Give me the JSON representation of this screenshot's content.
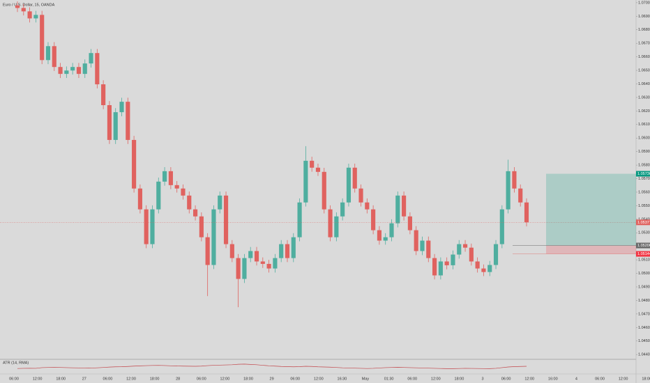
{
  "chart_data": {
    "type": "candlestick",
    "title": "Euro / U.S. Dollar, 15, OANDA",
    "up_color": "#4fae9f",
    "down_color": "#e0625f",
    "candles": [
      [
        1.0698,
        1.0701,
        1.06931,
        1.06961
      ],
      [
        1.06961,
        1.06991,
        1.06906,
        1.06936
      ],
      [
        1.06936,
        1.06966,
        1.06854,
        1.06884
      ],
      [
        1.06884,
        1.0694,
        1.06854,
        1.0691
      ],
      [
        1.0691,
        1.0694,
        1.06546,
        1.06576
      ],
      [
        1.06576,
        1.06709,
        1.06546,
        1.06679
      ],
      [
        1.06679,
        1.06709,
        1.06495,
        1.06525
      ],
      [
        1.06525,
        1.06555,
        1.06444,
        1.06474
      ],
      [
        1.06474,
        1.06529,
        1.06444,
        1.06499
      ],
      [
        1.06499,
        1.06555,
        1.06469,
        1.06525
      ],
      [
        1.06525,
        1.06555,
        1.06444,
        1.06474
      ],
      [
        1.06474,
        1.06581,
        1.06444,
        1.06551
      ],
      [
        1.06551,
        1.06658,
        1.06521,
        1.06628
      ],
      [
        1.06628,
        1.06658,
        1.06367,
        1.06397
      ],
      [
        1.06397,
        1.06427,
        1.06213,
        1.06243
      ],
      [
        1.06243,
        1.06273,
        1.05956,
        1.05986
      ],
      [
        1.05986,
        1.06221,
        1.05956,
        1.06191
      ],
      [
        1.06191,
        1.06298,
        1.06161,
        1.06268
      ],
      [
        1.06268,
        1.06298,
        1.05956,
        1.05986
      ],
      [
        1.05986,
        1.06016,
        1.05597,
        1.05627
      ],
      [
        1.05627,
        1.05657,
        1.05443,
        1.05473
      ],
      [
        1.05473,
        1.05503,
        1.05186,
        1.05216
      ],
      [
        1.05216,
        1.05503,
        1.05186,
        1.05473
      ],
      [
        1.05473,
        1.05708,
        1.05443,
        1.05678
      ],
      [
        1.05678,
        1.05785,
        1.05648,
        1.05755
      ],
      [
        1.05755,
        1.05785,
        1.05622,
        1.05652
      ],
      [
        1.05652,
        1.05682,
        1.05597,
        1.05627
      ],
      [
        1.05627,
        1.05657,
        1.05545,
        1.05575
      ],
      [
        1.05575,
        1.05605,
        1.05443,
        1.05473
      ],
      [
        1.05473,
        1.05503,
        1.05391,
        1.05421
      ],
      [
        1.05421,
        1.05451,
        1.05237,
        1.05267
      ],
      [
        1.05267,
        1.05297,
        1.04832,
        1.05062
      ],
      [
        1.05062,
        1.05503,
        1.05032,
        1.05473
      ],
      [
        1.05473,
        1.05605,
        1.05443,
        1.05575
      ],
      [
        1.05575,
        1.05605,
        1.05186,
        1.05216
      ],
      [
        1.05216,
        1.05246,
        1.05083,
        1.05113
      ],
      [
        1.05113,
        1.05143,
        1.0475,
        1.04959
      ],
      [
        1.04959,
        1.05143,
        1.04929,
        1.05113
      ],
      [
        1.05113,
        1.05195,
        1.05083,
        1.05165
      ],
      [
        1.05165,
        1.05195,
        1.05058,
        1.05088
      ],
      [
        1.05088,
        1.05118,
        1.0504,
        1.0507
      ],
      [
        1.0507,
        1.051,
        1.05006,
        1.05036
      ],
      [
        1.05036,
        1.05143,
        1.05006,
        1.05113
      ],
      [
        1.05113,
        1.05246,
        1.05083,
        1.05216
      ],
      [
        1.05216,
        1.05246,
        1.05083,
        1.05113
      ],
      [
        1.05113,
        1.05297,
        1.05083,
        1.05267
      ],
      [
        1.05267,
        1.05554,
        1.05237,
        1.05524
      ],
      [
        1.05524,
        1.0594,
        1.05494,
        1.05832
      ],
      [
        1.05832,
        1.05862,
        1.05751,
        1.05781
      ],
      [
        1.05781,
        1.05811,
        1.0572,
        1.0575
      ],
      [
        1.0575,
        1.0578,
        1.05443,
        1.05473
      ],
      [
        1.05473,
        1.05503,
        1.05237,
        1.05267
      ],
      [
        1.05267,
        1.05451,
        1.05237,
        1.05421
      ],
      [
        1.05421,
        1.05554,
        1.05391,
        1.05524
      ],
      [
        1.05524,
        1.05811,
        1.05494,
        1.05781
      ],
      [
        1.05781,
        1.05811,
        1.05597,
        1.05627
      ],
      [
        1.05627,
        1.05657,
        1.05494,
        1.05524
      ],
      [
        1.05524,
        1.05554,
        1.05443,
        1.05473
      ],
      [
        1.05473,
        1.05503,
        1.05289,
        1.05319
      ],
      [
        1.05319,
        1.05349,
        1.05212,
        1.05242
      ],
      [
        1.05242,
        1.05297,
        1.05212,
        1.05267
      ],
      [
        1.05267,
        1.054,
        1.05237,
        1.0537
      ],
      [
        1.0537,
        1.05605,
        1.0534,
        1.05575
      ],
      [
        1.05575,
        1.05605,
        1.05391,
        1.05421
      ],
      [
        1.05421,
        1.05451,
        1.05289,
        1.05319
      ],
      [
        1.05319,
        1.05349,
        1.05135,
        1.05165
      ],
      [
        1.05165,
        1.05272,
        1.05135,
        1.05242
      ],
      [
        1.05242,
        1.05272,
        1.05083,
        1.05113
      ],
      [
        1.05113,
        1.05143,
        1.04955,
        1.04985
      ],
      [
        1.04985,
        1.05118,
        1.04955,
        1.05088
      ],
      [
        1.05088,
        1.05118,
        1.0503,
        1.0506
      ],
      [
        1.0506,
        1.05169,
        1.0503,
        1.05139
      ],
      [
        1.05139,
        1.05246,
        1.05109,
        1.05216
      ],
      [
        1.05216,
        1.05246,
        1.0516,
        1.0519
      ],
      [
        1.0519,
        1.0522,
        1.05058,
        1.05088
      ],
      [
        1.05088,
        1.05118,
        1.05006,
        1.05036
      ],
      [
        1.05036,
        1.05066,
        1.0498,
        1.0501
      ],
      [
        1.0501,
        1.05092,
        1.0498,
        1.05062
      ],
      [
        1.05062,
        1.05246,
        1.05032,
        1.05216
      ],
      [
        1.05216,
        1.05503,
        1.05186,
        1.05473
      ],
      [
        1.05473,
        1.0584,
        1.05443,
        1.05755
      ],
      [
        1.05755,
        1.05785,
        1.05597,
        1.05627
      ],
      [
        1.05627,
        1.05657,
        1.05494,
        1.05524
      ],
      [
        1.05524,
        1.05554,
        1.05347,
        1.05377
      ]
    ],
    "ylim": [
      1.0437,
      1.0702
    ],
    "yticks": [
      {
        "value": 1.044,
        "label": "1.04400"
      },
      {
        "value": 1.045,
        "label": "1.04500"
      },
      {
        "value": 1.046,
        "label": "1.04600"
      },
      {
        "value": 1.047,
        "label": "1.04700"
      },
      {
        "value": 1.048,
        "label": "1.04800"
      },
      {
        "value": 1.049,
        "label": "1.04900"
      },
      {
        "value": 1.05,
        "label": "1.05000"
      },
      {
        "value": 1.051,
        "label": "1.05100"
      },
      {
        "value": 1.052,
        "label": "1.05200"
      },
      {
        "value": 1.053,
        "label": "1.05300"
      },
      {
        "value": 1.054,
        "label": "1.05400"
      },
      {
        "value": 1.055,
        "label": "1.05500"
      },
      {
        "value": 1.056,
        "label": "1.05600"
      },
      {
        "value": 1.057,
        "label": "1.05700"
      },
      {
        "value": 1.058,
        "label": "1.05800"
      },
      {
        "value": 1.059,
        "label": "1.05900"
      },
      {
        "value": 1.06,
        "label": "1.06000"
      },
      {
        "value": 1.061,
        "label": "1.06100"
      },
      {
        "value": 1.062,
        "label": "1.06200"
      },
      {
        "value": 1.063,
        "label": "1.06300"
      },
      {
        "value": 1.064,
        "label": "1.06400"
      },
      {
        "value": 1.065,
        "label": "1.06500"
      },
      {
        "value": 1.066,
        "label": "1.06600"
      },
      {
        "value": 1.067,
        "label": "1.06700"
      },
      {
        "value": 1.068,
        "label": "1.06800"
      },
      {
        "value": 1.069,
        "label": "1.06900"
      },
      {
        "value": 1.07,
        "label": "1.07000"
      }
    ],
    "last_price": {
      "value": 1.05377,
      "label": "1.05377"
    },
    "position": {
      "target": {
        "value": 1.05736,
        "label": "1.05736"
      },
      "entry": {
        "value": 1.05206,
        "label": "1.05206"
      },
      "stop": {
        "value": 1.05144,
        "label": "1.05144"
      }
    },
    "time_labels": [
      "06:00",
      "12:00",
      "18:00",
      "27",
      "06:00",
      "12:00",
      "18:00",
      "28",
      "06:00",
      "12:00",
      "18:00",
      "29",
      "06:00",
      "12:00",
      "16:30",
      "May",
      "01:30",
      "06:00",
      "12:00",
      "18:00",
      "3",
      "06:00",
      "12:00",
      "16:00",
      "4",
      "06:00",
      "12:00",
      "18:00"
    ],
    "atr_label": "ATR (14, RMA)",
    "atr_color": "#c2454a",
    "atr_ylim": [
      0.0002,
      0.0016
    ],
    "atr": [
      0.00068,
      0.0007,
      0.00071,
      0.0007,
      0.00078,
      0.0008,
      0.00081,
      0.0008,
      0.00078,
      0.00076,
      0.00075,
      0.00074,
      0.00073,
      0.00076,
      0.0008,
      0.00085,
      0.00088,
      0.00089,
      0.00092,
      0.00096,
      0.00099,
      0.00102,
      0.00104,
      0.00105,
      0.00103,
      0.001,
      0.00098,
      0.00096,
      0.00095,
      0.00094,
      0.00096,
      0.00102,
      0.00106,
      0.00108,
      0.0011,
      0.00112,
      0.00118,
      0.0012,
      0.00116,
      0.00112,
      0.00106,
      0.001,
      0.00096,
      0.00092,
      0.0009,
      0.00088,
      0.0009,
      0.00094,
      0.00092,
      0.00088,
      0.00086,
      0.00084,
      0.0008,
      0.00076,
      0.00074,
      0.00072,
      0.0007,
      0.00068,
      0.0007,
      0.00074,
      0.00078,
      0.0008,
      0.00082,
      0.0008,
      0.00078,
      0.00076,
      0.00074,
      0.00072,
      0.0007,
      0.00068,
      0.00066,
      0.00066,
      0.00068,
      0.0007,
      0.00069,
      0.00068,
      0.00067,
      0.00066,
      0.0007,
      0.00078,
      0.00086,
      0.0009,
      0.00092,
      0.00094
    ]
  }
}
